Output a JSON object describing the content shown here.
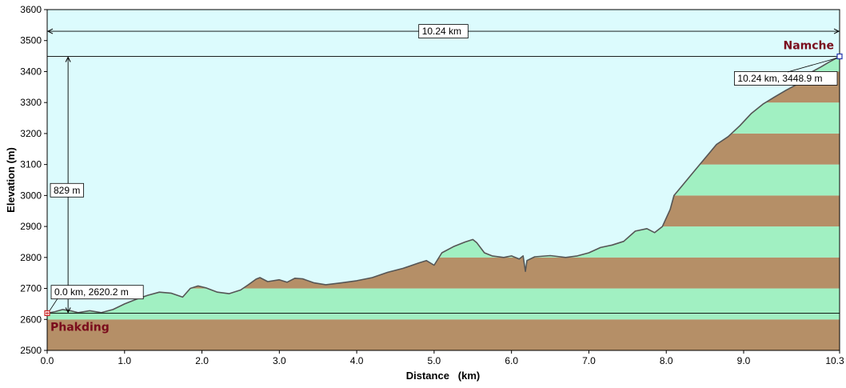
{
  "chart_data": {
    "type": "area",
    "title": "",
    "xlabel": "Distance   (km)",
    "ylabel": "Elevation (m)",
    "xlim": [
      0,
      10.24
    ],
    "ylim": [
      2500,
      3600
    ],
    "x_ticks": [
      0.0,
      1.0,
      2.0,
      3.0,
      4.0,
      5.0,
      6.0,
      7.0,
      8.0,
      9.0,
      10.3
    ],
    "x_tick_labels": [
      "0.0",
      "1.0",
      "2.0",
      "3.0",
      "4.0",
      "5.0",
      "6.0",
      "7.0",
      "8.0",
      "9.0",
      "10.3"
    ],
    "y_ticks": [
      2500,
      2600,
      2700,
      2800,
      2900,
      3000,
      3100,
      3200,
      3300,
      3400,
      3500,
      3600
    ],
    "y_tick_labels": [
      "2500",
      "2600",
      "2700",
      "2800",
      "2900",
      "3000",
      "3100",
      "3200",
      "3300",
      "3400",
      "3500",
      "3600"
    ],
    "band_colors": [
      "#b58f67",
      "#a1f0c2"
    ],
    "sky_color": "#dcfbfd",
    "line_color": "#555555",
    "profile": {
      "x": [
        0.0,
        0.1,
        0.2,
        0.3,
        0.4,
        0.55,
        0.7,
        0.85,
        1.0,
        1.15,
        1.3,
        1.45,
        1.6,
        1.75,
        1.85,
        1.95,
        2.05,
        2.2,
        2.35,
        2.5,
        2.6,
        2.7,
        2.75,
        2.85,
        3.0,
        3.1,
        3.2,
        3.3,
        3.45,
        3.6,
        3.8,
        4.0,
        4.2,
        4.4,
        4.6,
        4.8,
        4.9,
        5.0,
        5.1,
        5.25,
        5.4,
        5.5,
        5.55,
        5.65,
        5.75,
        5.9,
        6.0,
        6.1,
        6.15,
        6.18,
        6.2,
        6.3,
        6.5,
        6.7,
        6.85,
        7.0,
        7.15,
        7.3,
        7.45,
        7.6,
        7.75,
        7.85,
        7.95,
        8.05,
        8.1,
        8.2,
        8.35,
        8.5,
        8.65,
        8.8,
        8.95,
        9.1,
        9.25,
        9.4,
        9.55,
        9.7,
        9.85,
        10.0,
        10.1,
        10.24
      ],
      "y": [
        2620.2,
        2625,
        2632,
        2628,
        2622,
        2628,
        2622,
        2632,
        2650,
        2665,
        2678,
        2688,
        2685,
        2672,
        2700,
        2708,
        2702,
        2688,
        2683,
        2695,
        2712,
        2730,
        2735,
        2722,
        2728,
        2720,
        2733,
        2731,
        2718,
        2712,
        2718,
        2725,
        2735,
        2752,
        2765,
        2782,
        2790,
        2775,
        2815,
        2835,
        2850,
        2858,
        2848,
        2815,
        2805,
        2800,
        2805,
        2795,
        2805,
        2755,
        2790,
        2802,
        2806,
        2800,
        2805,
        2815,
        2832,
        2840,
        2852,
        2885,
        2893,
        2880,
        2900,
        2955,
        3000,
        3030,
        3075,
        3120,
        3165,
        3190,
        3225,
        3265,
        3295,
        3318,
        3340,
        3360,
        3395,
        3415,
        3430,
        3448.9
      ]
    },
    "annotations": [
      {
        "text": "10.24 km",
        "kind": "horizontal-span",
        "x_start": 0.0,
        "x_end": 10.24,
        "y": 3530
      },
      {
        "text": "829 m",
        "kind": "vertical-span",
        "x": 0.27,
        "y_start": 2620.2,
        "y_end": 3448.9
      },
      {
        "text": "0.0 km, 2620.2 m",
        "kind": "point",
        "x": 0.0,
        "y": 2620.2
      },
      {
        "text": "10.24 km, 3448.9 m",
        "kind": "point",
        "x": 10.24,
        "y": 3448.9
      }
    ],
    "places": [
      {
        "name": "Phakding",
        "x": 0.0,
        "y": 2620.2
      },
      {
        "name": "Namche",
        "x": 10.24,
        "y": 3448.9
      }
    ],
    "grid": false,
    "legend": "none"
  }
}
